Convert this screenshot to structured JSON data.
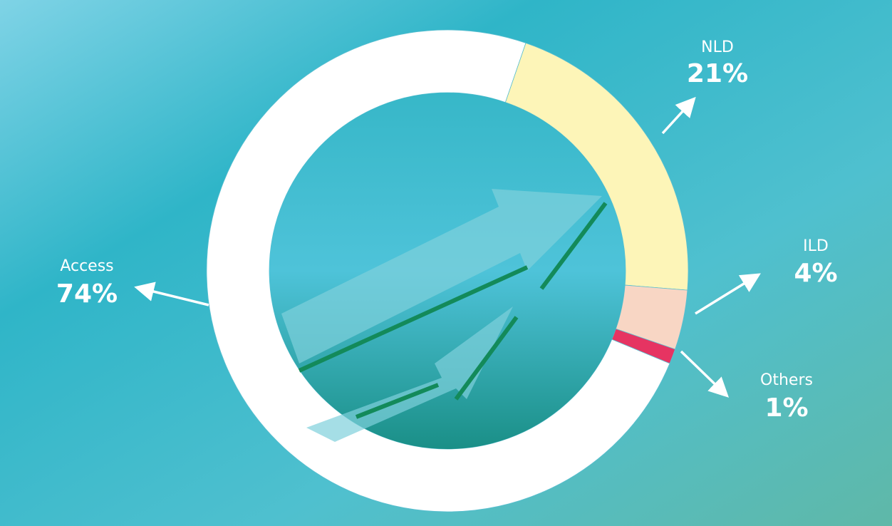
{
  "chart_data": {
    "type": "donut",
    "categories": [
      "Access",
      "NLD",
      "ILD",
      "Others"
    ],
    "values": [
      74,
      21,
      4,
      1
    ],
    "value_labels": [
      "74%",
      "21%",
      "4%",
      "1%"
    ],
    "colors": [
      "#ffffff",
      "#fdf5b8",
      "#f8d6c4",
      "#e63462"
    ]
  }
}
